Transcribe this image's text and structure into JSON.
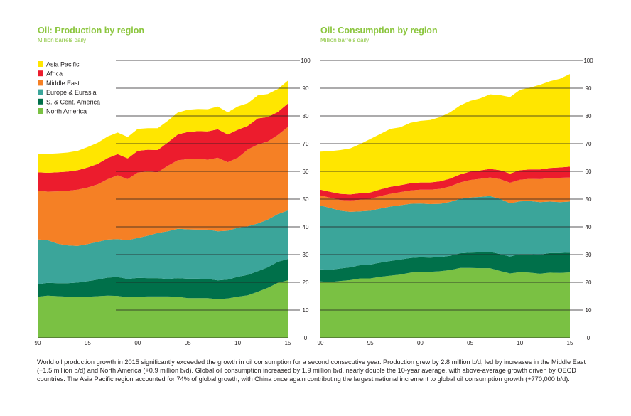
{
  "chart_data": [
    {
      "type": "area",
      "stacked": true,
      "title": "Oil: Production by region",
      "subtitle": "Million barrels daily",
      "x_tick_labels": [
        "90",
        "95",
        "00",
        "05",
        "10",
        "15"
      ],
      "y_tick_labels": [
        "0",
        "10",
        "20",
        "30",
        "40",
        "50",
        "60",
        "70",
        "80",
        "90",
        "100"
      ],
      "ylim": [
        0,
        100
      ],
      "x": [
        1990,
        1991,
        1992,
        1993,
        1994,
        1995,
        1996,
        1997,
        1998,
        1999,
        2000,
        2001,
        2002,
        2003,
        2004,
        2005,
        2006,
        2007,
        2008,
        2009,
        2010,
        2011,
        2012,
        2013,
        2014,
        2015
      ],
      "legend_position": "top-left",
      "series": [
        {
          "name": "North America",
          "color": "#7ac143",
          "values": [
            14.8,
            15.2,
            15.0,
            14.8,
            14.8,
            14.8,
            15.0,
            15.2,
            15.1,
            14.6,
            14.8,
            14.9,
            14.9,
            14.9,
            14.8,
            14.3,
            14.3,
            14.3,
            13.9,
            14.2,
            14.8,
            15.3,
            16.6,
            18.0,
            19.8,
            20.7
          ]
        },
        {
          "name": "S. & Cent. America",
          "color": "#00704a",
          "values": [
            4.5,
            4.6,
            4.7,
            4.9,
            5.1,
            5.6,
            6.0,
            6.5,
            6.8,
            6.6,
            6.8,
            6.6,
            6.6,
            6.3,
            6.7,
            7.0,
            7.0,
            6.9,
            6.8,
            6.8,
            7.2,
            7.4,
            7.4,
            7.4,
            7.6,
            7.7
          ]
        },
        {
          "name": "Europe & Eurasia",
          "color": "#3ba59a",
          "values": [
            16.2,
            15.4,
            14.2,
            13.6,
            13.2,
            13.4,
            13.6,
            13.7,
            13.7,
            14.0,
            14.4,
            15.3,
            16.3,
            17.2,
            17.8,
            17.8,
            17.7,
            17.8,
            17.7,
            17.6,
            17.7,
            17.5,
            17.2,
            17.2,
            17.2,
            17.5
          ]
        },
        {
          "name": "Middle East",
          "color": "#f58025",
          "values": [
            17.5,
            17.5,
            18.9,
            19.7,
            20.3,
            20.4,
            20.7,
            21.8,
            23.0,
            22.0,
            23.6,
            23.1,
            21.9,
            23.6,
            24.7,
            25.3,
            25.6,
            25.2,
            26.5,
            24.7,
            25.2,
            27.7,
            28.5,
            28.2,
            28.5,
            30.1
          ]
        },
        {
          "name": "Africa",
          "color": "#ec1c2d",
          "values": [
            6.7,
            6.8,
            6.9,
            6.9,
            7.0,
            7.2,
            7.4,
            7.6,
            7.6,
            7.5,
            7.8,
            7.9,
            8.0,
            8.4,
            9.3,
            9.8,
            9.9,
            10.2,
            10.3,
            10.0,
            10.1,
            8.5,
            9.4,
            8.8,
            8.3,
            8.4
          ]
        },
        {
          "name": "Asia Pacific",
          "color": "#ffe600",
          "values": [
            6.7,
            6.8,
            6.8,
            6.9,
            7.0,
            7.4,
            7.6,
            7.8,
            7.8,
            7.7,
            7.9,
            7.8,
            7.9,
            7.8,
            7.9,
            8.0,
            8.0,
            8.0,
            8.2,
            8.0,
            8.4,
            8.2,
            8.3,
            8.3,
            8.3,
            8.3
          ]
        }
      ]
    },
    {
      "type": "area",
      "stacked": true,
      "title": "Oil: Consumption by region",
      "subtitle": "Million barrels daily",
      "x_tick_labels": [
        "90",
        "95",
        "00",
        "05",
        "10",
        "15"
      ],
      "y_tick_labels": [
        "0",
        "10",
        "20",
        "30",
        "40",
        "50",
        "60",
        "70",
        "80",
        "90",
        "100"
      ],
      "ylim": [
        0,
        100
      ],
      "x": [
        1990,
        1991,
        1992,
        1993,
        1994,
        1995,
        1996,
        1997,
        1998,
        1999,
        2000,
        2001,
        2002,
        2003,
        2004,
        2005,
        2006,
        2007,
        2008,
        2009,
        2010,
        2011,
        2012,
        2013,
        2014,
        2015
      ],
      "series": [
        {
          "name": "North America",
          "color": "#7ac143",
          "values": [
            20.3,
            20.1,
            20.5,
            20.8,
            21.4,
            21.4,
            22.0,
            22.4,
            22.8,
            23.5,
            23.8,
            23.8,
            24.0,
            24.4,
            25.2,
            25.2,
            25.1,
            25.1,
            24.1,
            23.2,
            23.7,
            23.5,
            23.1,
            23.5,
            23.4,
            23.6
          ]
        },
        {
          "name": "S. & Cent. America",
          "color": "#00704a",
          "values": [
            4.4,
            4.4,
            4.5,
            4.6,
            4.8,
            5.0,
            5.1,
            5.3,
            5.4,
            5.3,
            5.2,
            5.1,
            5.1,
            5.2,
            5.3,
            5.5,
            5.7,
            5.9,
            6.1,
            6.1,
            6.5,
            6.7,
            6.9,
            7.1,
            7.2,
            7.1
          ]
        },
        {
          "name": "Europe & Eurasia",
          "color": "#3ba59a",
          "values": [
            23.0,
            22.3,
            20.8,
            20.0,
            19.4,
            19.4,
            19.5,
            19.6,
            19.6,
            19.5,
            19.4,
            19.3,
            19.2,
            19.4,
            19.6,
            19.9,
            20.0,
            20.1,
            19.9,
            19.2,
            19.0,
            19.1,
            18.9,
            18.5,
            18.3,
            18.4
          ]
        },
        {
          "name": "Middle East",
          "color": "#f58025",
          "values": [
            3.6,
            3.7,
            3.9,
            4.1,
            4.2,
            4.3,
            4.5,
            4.6,
            4.7,
            4.8,
            5.0,
            5.2,
            5.4,
            5.6,
            5.9,
            6.3,
            6.5,
            6.7,
            7.1,
            7.4,
            7.8,
            8.0,
            8.3,
            8.5,
            8.8,
            8.7
          ]
        },
        {
          "name": "Africa",
          "color": "#ec1c2d",
          "values": [
            2.1,
            2.1,
            2.2,
            2.2,
            2.3,
            2.3,
            2.4,
            2.5,
            2.5,
            2.6,
            2.6,
            2.6,
            2.7,
            2.8,
            2.9,
            3.0,
            3.0,
            3.1,
            3.2,
            3.3,
            3.4,
            3.4,
            3.5,
            3.6,
            3.7,
            3.9
          ]
        },
        {
          "name": "Asia Pacific",
          "color": "#ffe600",
          "values": [
            13.7,
            14.7,
            15.8,
            16.6,
            17.8,
            19.3,
            20.0,
            20.9,
            20.9,
            21.8,
            22.2,
            22.5,
            23.2,
            23.9,
            24.9,
            25.5,
            26.0,
            26.9,
            27.1,
            27.6,
            29.0,
            29.5,
            30.5,
            31.3,
            32.0,
            33.4
          ]
        }
      ]
    }
  ],
  "caption": "World oil production growth in 2015 significantly exceeded the growth in oil consumption for a second consecutive year. Production grew by 2.8 million b/d, led by increases in the Middle East (+1.5 million b/d) and North America (+0.9 million b/d). Global oil consumption increased by 1.9 million b/d, nearly double the 10-year average, with above-average growth driven by OECD countries. The Asia Pacific region accounted for 74% of global growth, with China once again contributing the largest national increment to global oil consumption growth (+770,000 b/d)."
}
